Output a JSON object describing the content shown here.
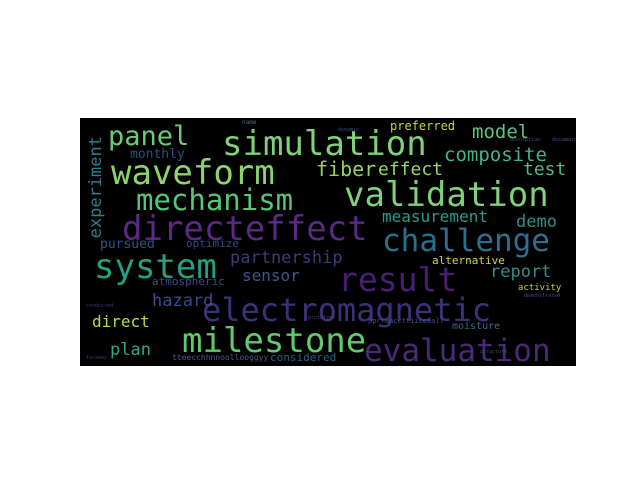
{
  "word_cloud": {
    "background": "#000000",
    "words": [
      {
        "text": "simulation",
        "color": "#7fd27a",
        "weight": 1.0
      },
      {
        "text": "waveform",
        "color": "#8bd46a",
        "weight": 1.0
      },
      {
        "text": "validation",
        "color": "#7fd27a",
        "weight": 1.0
      },
      {
        "text": "mechanism",
        "color": "#55c67a",
        "weight": 0.9
      },
      {
        "text": "panel",
        "color": "#6ccc76",
        "weight": 0.85
      },
      {
        "text": "model",
        "color": "#5cc57a",
        "weight": 0.55
      },
      {
        "text": "composite",
        "color": "#3fb68a",
        "weight": 0.55
      },
      {
        "text": "fiber",
        "color": "#95d263",
        "weight": 0.6
      },
      {
        "text": "effect",
        "color": "#9ad563",
        "weight": 0.6
      },
      {
        "text": "test",
        "color": "#4fba87",
        "weight": 0.5
      },
      {
        "text": "directeffect",
        "color": "#5a2a86",
        "weight": 1.0
      },
      {
        "text": "challenge",
        "color": "#2c6f8e",
        "weight": 1.0
      },
      {
        "text": "measurement",
        "color": "#2a9b8a",
        "weight": 0.5
      },
      {
        "text": "demo",
        "color": "#2e8f8c",
        "weight": 0.5
      },
      {
        "text": "system",
        "color": "#23a184",
        "weight": 1.0
      },
      {
        "text": "partnership",
        "color": "#3c3b7e",
        "weight": 0.55
      },
      {
        "text": "sensor",
        "color": "#3a5a8e",
        "weight": 0.5
      },
      {
        "text": "result",
        "color": "#4a1f72",
        "weight": 1.0
      },
      {
        "text": "report",
        "color": "#2f8f8a",
        "weight": 0.55
      },
      {
        "text": "electromagnetic",
        "color": "#3b3178",
        "weight": 1.0
      },
      {
        "text": "hazard",
        "color": "#3a4e8a",
        "weight": 0.55
      },
      {
        "text": "direct",
        "color": "#b7dd3b",
        "weight": 0.55
      },
      {
        "text": "milestone",
        "color": "#5fca70",
        "weight": 1.0
      },
      {
        "text": "evaluation",
        "color": "#4a2a78",
        "weight": 1.0
      },
      {
        "text": "plan",
        "color": "#34a784",
        "weight": 0.55
      },
      {
        "text": "experiment",
        "color": "#2d7f8e",
        "weight": 0.55
      },
      {
        "text": "monthly",
        "color": "#2a4f86",
        "weight": 0.45
      },
      {
        "text": "pursued",
        "color": "#2b5785",
        "weight": 0.45
      },
      {
        "text": "optimize",
        "color": "#2b4c85",
        "weight": 0.4
      },
      {
        "text": "atmospheric",
        "color": "#3f4a86",
        "weight": 0.4
      },
      {
        "text": "alternative",
        "color": "#d7d832",
        "weight": 0.4
      },
      {
        "text": "preferred",
        "color": "#c9d43a",
        "weight": 0.4
      },
      {
        "text": "considered",
        "color": "#2c5f88",
        "weight": 0.4
      },
      {
        "text": "moisture",
        "color": "#3a6b88",
        "weight": 0.35
      },
      {
        "text": "activity",
        "color": "#c9d43a",
        "weight": 0.3
      },
      {
        "text": "pprraaccttiiccaall",
        "color": "#445089",
        "weight": 0.25
      },
      {
        "text": "tteecchhnnoollooggyy",
        "color": "#4a5a90",
        "weight": 0.25
      },
      {
        "text": "name",
        "color": "#4d6f86",
        "weight": 0.2
      },
      {
        "text": "faraday",
        "color": "#3a3c70",
        "weight": 0.15
      },
      {
        "text": "conducted",
        "color": "#3a3c70",
        "weight": 0.15
      },
      {
        "text": "demonstrated",
        "color": "#3c4e7a",
        "weight": 0.15
      },
      {
        "text": "dynamic",
        "color": "#3c4e7a",
        "weight": 0.15
      },
      {
        "text": "document",
        "color": "#3c4e7a",
        "weight": 0.15
      },
      {
        "text": "structure",
        "color": "#3c4e7a",
        "weight": 0.15
      },
      {
        "text": "absorption",
        "color": "#3c4e7a",
        "weight": 0.15
      },
      {
        "text": "prototype",
        "color": "#3c4e7a",
        "weight": 0.15
      }
    ]
  }
}
